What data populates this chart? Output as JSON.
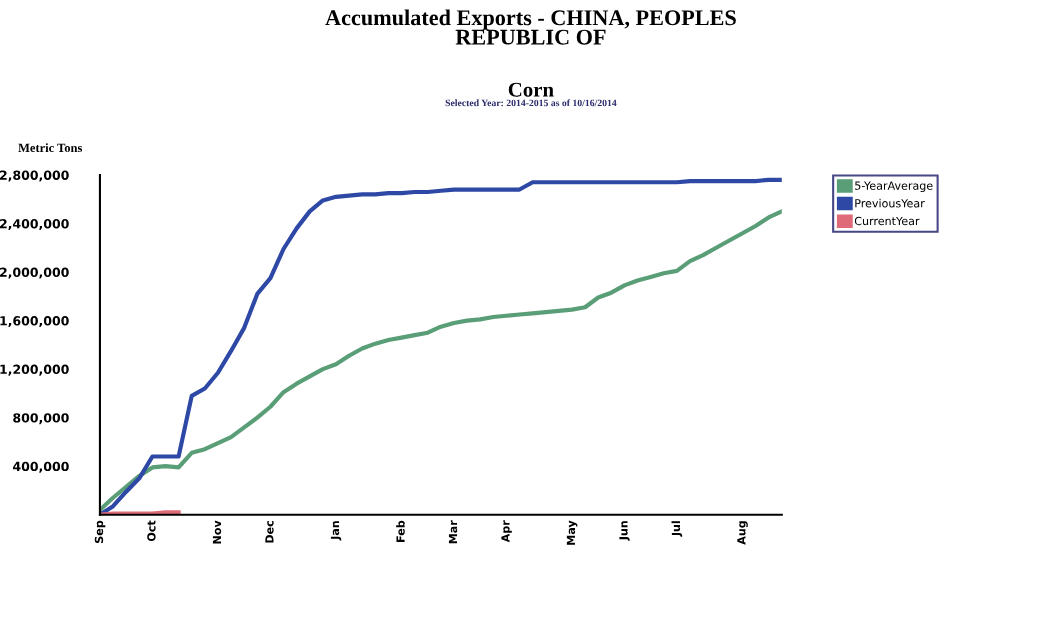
{
  "chart_data": {
    "type": "line",
    "title": "Accumulated Exports - CHINA, PEOPLES\nREPUBLIC OF",
    "subtitle": "Corn",
    "annotations": [
      "Selected Year: 2014-2015 as of 10/16/2014"
    ],
    "ylabel": "Metric Tons",
    "categories": [
      "Sep",
      null,
      null,
      null,
      "Oct",
      null,
      null,
      null,
      null,
      "Nov",
      null,
      null,
      null,
      "Dec",
      null,
      null,
      null,
      null,
      "Jan",
      null,
      null,
      null,
      null,
      "Feb",
      null,
      null,
      null,
      "Mar",
      null,
      null,
      null,
      "Apr",
      null,
      null,
      null,
      null,
      "May",
      null,
      null,
      null,
      "Jun",
      null,
      null,
      null,
      "Jul",
      null,
      null,
      null,
      null,
      "Aug",
      null,
      null,
      null
    ],
    "series": [
      {
        "name": "5-YearAverage",
        "color": "#5a9e78",
        "values": [
          40000,
          140000,
          230000,
          320000,
          390000,
          400000,
          390000,
          510000,
          540000,
          590000,
          640000,
          720000,
          800000,
          890000,
          1010000,
          1080000,
          1140000,
          1200000,
          1240000,
          1310000,
          1370000,
          1410000,
          1440000,
          1460000,
          1480000,
          1500000,
          1550000,
          1580000,
          1600000,
          1610000,
          1630000,
          1640000,
          1650000,
          1660000,
          1670000,
          1680000,
          1690000,
          1710000,
          1790000,
          1830000,
          1890000,
          1930000,
          1960000,
          1990000,
          2010000,
          2090000,
          2140000,
          2200000,
          2260000,
          2320000,
          2380000,
          2450000,
          2500000
        ]
      },
      {
        "name": "PreviousYear",
        "color": "#2e48a6",
        "values": [
          0,
          70000,
          190000,
          300000,
          480000,
          480000,
          480000,
          980000,
          1040000,
          1170000,
          1350000,
          1540000,
          1820000,
          1950000,
          2190000,
          2360000,
          2500000,
          2590000,
          2620000,
          2630000,
          2640000,
          2640000,
          2650000,
          2650000,
          2660000,
          2660000,
          2670000,
          2680000,
          2680000,
          2680000,
          2680000,
          2680000,
          2680000,
          2740000,
          2740000,
          2740000,
          2740000,
          2740000,
          2740000,
          2740000,
          2740000,
          2740000,
          2740000,
          2740000,
          2740000,
          2750000,
          2750000,
          2750000,
          2750000,
          2750000,
          2750000,
          2760000,
          2760000
        ]
      },
      {
        "name": "CurrentYear",
        "color": "#e06b78",
        "values": [
          0,
          10000,
          10000,
          10000,
          10000,
          20000,
          20000,
          null,
          null,
          null,
          null,
          null,
          null,
          null,
          null,
          null,
          null,
          null,
          null,
          null,
          null,
          null,
          null,
          null,
          null,
          null,
          null,
          null,
          null,
          null,
          null,
          null,
          null,
          null,
          null,
          null,
          null,
          null,
          null,
          null,
          null,
          null,
          null,
          null,
          null,
          null,
          null,
          null,
          null,
          null,
          null,
          null,
          null
        ]
      }
    ],
    "ylim": [
      0,
      2800000
    ],
    "yticks": [
      {
        "value": 400000,
        "label": "400,000"
      },
      {
        "value": 800000,
        "label": "800,000"
      },
      {
        "value": 1200000,
        "label": "1,200,000"
      },
      {
        "value": 1600000,
        "label": "1,600,000"
      },
      {
        "value": 2000000,
        "label": "2,000,000"
      },
      {
        "value": 2400000,
        "label": "2,400,000"
      },
      {
        "value": 2800000,
        "label": "2,800,000"
      }
    ],
    "grid": false,
    "legend": "top right",
    "marker": "none",
    "line_style": "solid"
  }
}
